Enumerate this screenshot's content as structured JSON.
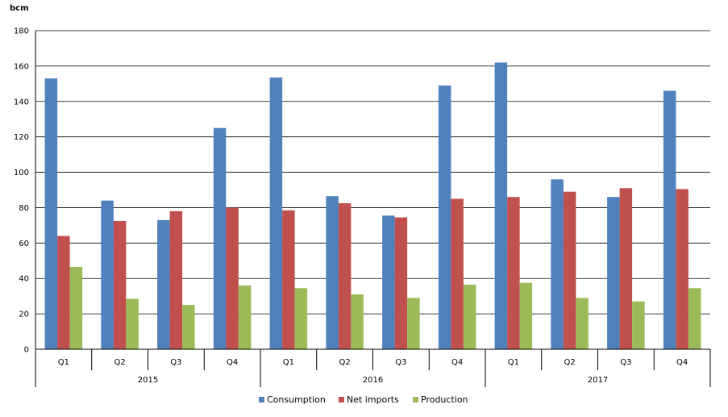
{
  "chart_data": {
    "type": "bar",
    "unit_label": "bcm",
    "title": "",
    "xlabel": "",
    "ylabel": "bcm",
    "ylim": [
      0,
      180
    ],
    "yticks": [
      0,
      20,
      40,
      60,
      80,
      100,
      120,
      140,
      160,
      180
    ],
    "grid": true,
    "legend_position": "bottom",
    "categories": [
      "Q1",
      "Q2",
      "Q3",
      "Q4",
      "Q1",
      "Q2",
      "Q3",
      "Q4",
      "Q1",
      "Q2",
      "Q3",
      "Q4"
    ],
    "groups": [
      {
        "label": "2015",
        "quarters": [
          "Q1",
          "Q2",
          "Q3",
          "Q4"
        ]
      },
      {
        "label": "2016",
        "quarters": [
          "Q1",
          "Q2",
          "Q3",
          "Q4"
        ]
      },
      {
        "label": "2017",
        "quarters": [
          "Q1",
          "Q2",
          "Q3",
          "Q4"
        ]
      }
    ],
    "series": [
      {
        "name": "Consumption",
        "color": "#4f81bd",
        "values": [
          153,
          84,
          73,
          125,
          153.5,
          86.5,
          75.5,
          149,
          162,
          96,
          86,
          146
        ]
      },
      {
        "name": "Net imports",
        "color": "#c0504d",
        "values": [
          64,
          72.5,
          78,
          80,
          78.5,
          82.5,
          74.5,
          85,
          86,
          89,
          91,
          90.5
        ]
      },
      {
        "name": "Production",
        "color": "#9bbb59",
        "values": [
          46.5,
          28.5,
          25,
          36,
          34.5,
          31,
          29,
          36.5,
          37.5,
          29,
          27,
          34.5
        ]
      }
    ]
  }
}
